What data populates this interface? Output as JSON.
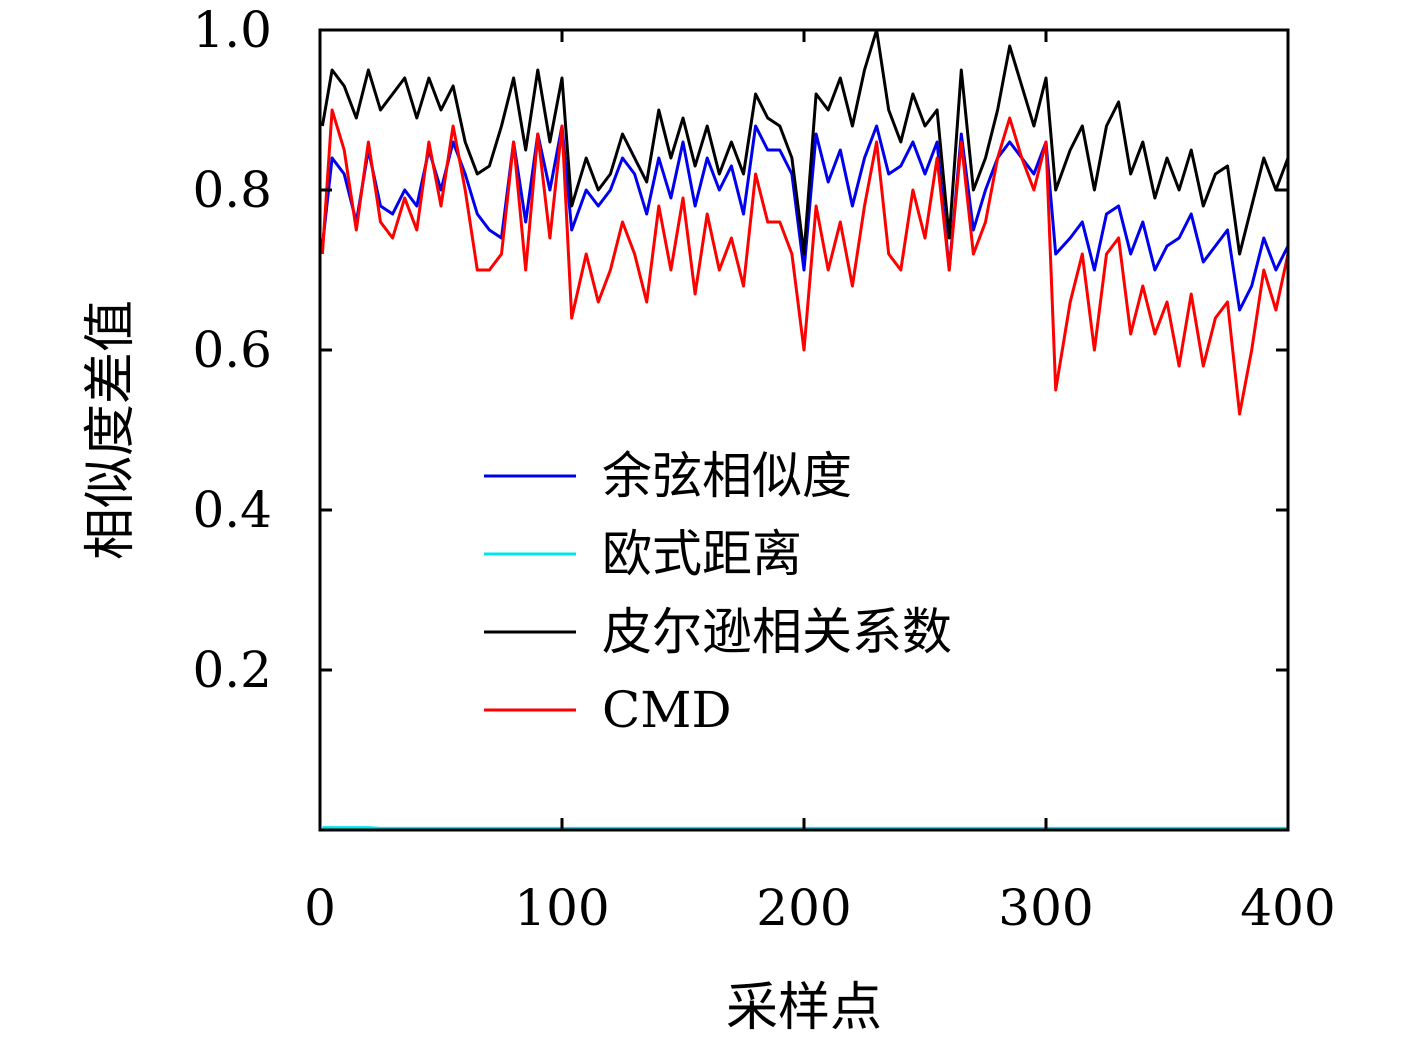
{
  "chart_data": {
    "type": "line",
    "xlabel": "采样点",
    "ylabel": "相似度差值",
    "xlim": [
      0,
      400
    ],
    "ylim": [
      0,
      1.0
    ],
    "xticks": [
      0,
      100,
      200,
      300,
      400
    ],
    "xtick_labels": [
      "0",
      "100",
      "200",
      "300",
      "400"
    ],
    "yticks": [
      0.2,
      0.4,
      0.6,
      0.8,
      1.0
    ],
    "ytick_labels": [
      "0.2",
      "0.4",
      "0.6",
      "0.8",
      "1.0"
    ],
    "grid": false,
    "legend_position": "center",
    "x": [
      1,
      5,
      10,
      15,
      20,
      25,
      30,
      35,
      40,
      45,
      50,
      55,
      60,
      65,
      70,
      75,
      80,
      85,
      90,
      95,
      100,
      104,
      110,
      115,
      120,
      125,
      130,
      135,
      140,
      145,
      150,
      155,
      160,
      165,
      170,
      175,
      180,
      185,
      190,
      195,
      200,
      205,
      210,
      215,
      220,
      225,
      230,
      235,
      240,
      245,
      250,
      255,
      260,
      265,
      270,
      275,
      280,
      285,
      290,
      295,
      300,
      304,
      310,
      315,
      320,
      325,
      330,
      335,
      340,
      345,
      350,
      355,
      360,
      365,
      370,
      375,
      380,
      385,
      390,
      395,
      400
    ],
    "series": [
      {
        "name": "余弦相似度",
        "color": "#0000ee",
        "values": [
          0.73,
          0.84,
          0.82,
          0.76,
          0.85,
          0.78,
          0.77,
          0.8,
          0.78,
          0.85,
          0.8,
          0.86,
          0.82,
          0.77,
          0.75,
          0.74,
          0.86,
          0.76,
          0.87,
          0.8,
          0.88,
          0.75,
          0.8,
          0.78,
          0.8,
          0.84,
          0.82,
          0.77,
          0.84,
          0.79,
          0.86,
          0.78,
          0.84,
          0.8,
          0.83,
          0.77,
          0.88,
          0.85,
          0.85,
          0.82,
          0.7,
          0.87,
          0.81,
          0.85,
          0.78,
          0.84,
          0.88,
          0.82,
          0.83,
          0.86,
          0.82,
          0.86,
          0.7,
          0.87,
          0.75,
          0.8,
          0.84,
          0.86,
          0.84,
          0.82,
          0.86,
          0.72,
          0.74,
          0.76,
          0.7,
          0.77,
          0.78,
          0.72,
          0.76,
          0.7,
          0.73,
          0.74,
          0.77,
          0.71,
          0.73,
          0.75,
          0.65,
          0.68,
          0.74,
          0.7,
          0.73
        ]
      },
      {
        "name": "欧式距离",
        "color": "#00e5ee",
        "values": [
          0.003,
          0.003,
          0.003,
          0.003,
          0.003,
          0.002,
          0.002,
          0.002,
          0.002,
          0.002,
          0.002,
          0.002,
          0.002,
          0.002,
          0.002,
          0.002,
          0.002,
          0.002,
          0.002,
          0.002,
          0.002,
          0.002,
          0.002,
          0.002,
          0.002,
          0.002,
          0.002,
          0.002,
          0.002,
          0.002,
          0.002,
          0.002,
          0.002,
          0.002,
          0.002,
          0.002,
          0.002,
          0.002,
          0.002,
          0.002,
          0.002,
          0.002,
          0.002,
          0.002,
          0.002,
          0.002,
          0.002,
          0.002,
          0.002,
          0.002,
          0.002,
          0.002,
          0.002,
          0.002,
          0.002,
          0.002,
          0.002,
          0.002,
          0.002,
          0.002,
          0.002,
          0.002,
          0.002,
          0.002,
          0.002,
          0.002,
          0.002,
          0.002,
          0.002,
          0.002,
          0.002,
          0.002,
          0.002,
          0.002,
          0.002,
          0.002,
          0.002,
          0.002,
          0.002,
          0.002,
          0.002
        ]
      },
      {
        "name": "皮尔逊相关系数",
        "color": "#000000",
        "values": [
          0.88,
          0.95,
          0.93,
          0.89,
          0.95,
          0.9,
          0.92,
          0.94,
          0.89,
          0.94,
          0.9,
          0.93,
          0.86,
          0.82,
          0.83,
          0.88,
          0.94,
          0.85,
          0.95,
          0.86,
          0.94,
          0.78,
          0.84,
          0.8,
          0.82,
          0.87,
          0.84,
          0.81,
          0.9,
          0.84,
          0.89,
          0.83,
          0.88,
          0.82,
          0.86,
          0.82,
          0.92,
          0.89,
          0.88,
          0.84,
          0.72,
          0.92,
          0.9,
          0.94,
          0.88,
          0.95,
          1.0,
          0.9,
          0.86,
          0.92,
          0.88,
          0.9,
          0.74,
          0.95,
          0.8,
          0.84,
          0.9,
          0.98,
          0.93,
          0.88,
          0.94,
          0.8,
          0.85,
          0.88,
          0.8,
          0.88,
          0.91,
          0.82,
          0.86,
          0.79,
          0.84,
          0.8,
          0.85,
          0.78,
          0.82,
          0.83,
          0.72,
          0.78,
          0.84,
          0.8,
          0.84
        ]
      },
      {
        "name": "CMD",
        "color": "#ff0000",
        "values": [
          0.72,
          0.9,
          0.85,
          0.75,
          0.86,
          0.76,
          0.74,
          0.79,
          0.75,
          0.86,
          0.78,
          0.88,
          0.8,
          0.7,
          0.7,
          0.72,
          0.86,
          0.7,
          0.87,
          0.74,
          0.88,
          0.64,
          0.72,
          0.66,
          0.7,
          0.76,
          0.72,
          0.66,
          0.78,
          0.7,
          0.79,
          0.67,
          0.77,
          0.7,
          0.74,
          0.68,
          0.82,
          0.76,
          0.76,
          0.72,
          0.6,
          0.78,
          0.7,
          0.76,
          0.68,
          0.78,
          0.86,
          0.72,
          0.7,
          0.8,
          0.74,
          0.84,
          0.7,
          0.86,
          0.72,
          0.76,
          0.84,
          0.89,
          0.84,
          0.8,
          0.86,
          0.55,
          0.66,
          0.72,
          0.6,
          0.72,
          0.74,
          0.62,
          0.68,
          0.62,
          0.66,
          0.58,
          0.67,
          0.58,
          0.64,
          0.66,
          0.52,
          0.6,
          0.7,
          0.65,
          0.72
        ]
      }
    ]
  }
}
